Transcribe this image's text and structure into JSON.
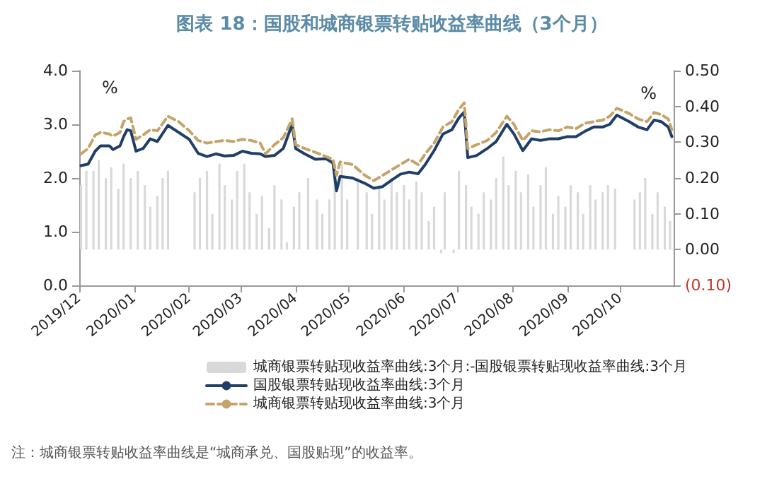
{
  "chart_data": {
    "type": "line",
    "title": "图表 18：国股和城商银票转贴收益率曲线（3个月）",
    "ylabel": "%",
    "y2label": "%",
    "annotations": [
      "注：城商银票转贴收益率曲线是“城商承兑、国股贴现”的收益率。"
    ],
    "xlim": [
      "2019-12-01",
      "2020-10-31"
    ],
    "xticks": [
      {
        "value": "2019-12-01",
        "label": "2019/12"
      },
      {
        "value": "2020-01-01",
        "label": "2020/01"
      },
      {
        "value": "2020-02-01",
        "label": "2020/02"
      },
      {
        "value": "2020-03-01",
        "label": "2020/03"
      },
      {
        "value": "2020-04-01",
        "label": "2020/04"
      },
      {
        "value": "2020-05-01",
        "label": "2020/05"
      },
      {
        "value": "2020-06-01",
        "label": "2020/06"
      },
      {
        "value": "2020-07-01",
        "label": "2020/07"
      },
      {
        "value": "2020-08-01",
        "label": "2020/08"
      },
      {
        "value": "2020-09-01",
        "label": "2020/09"
      },
      {
        "value": "2020-10-01",
        "label": "2020/10"
      }
    ],
    "ylim": [
      0,
      4
    ],
    "yticks": [
      {
        "value": 0,
        "label": "0.0"
      },
      {
        "value": 1,
        "label": "1.0"
      },
      {
        "value": 2,
        "label": "2.0"
      },
      {
        "value": 3,
        "label": "3.0"
      },
      {
        "value": 4,
        "label": "4.0"
      }
    ],
    "y2lim": [
      -0.1,
      0.5
    ],
    "y2ticks": [
      {
        "value": -0.1,
        "label": "(0.10)"
      },
      {
        "value": 0,
        "label": "0.00"
      },
      {
        "value": 0.1,
        "label": "0.10"
      },
      {
        "value": 0.2,
        "label": "0.20"
      },
      {
        "value": 0.3,
        "label": "0.30"
      },
      {
        "value": 0.4,
        "label": "0.40"
      },
      {
        "value": 0.5,
        "label": "0.50"
      }
    ],
    "grid": false,
    "legend": "bottom",
    "marker": "none",
    "series": [
      {
        "name": "城商银票转贴现收益率曲线:3个月:-国股银票转贴现收益率曲线:3个月",
        "type": "bar",
        "axis": "y2",
        "color": "#d9d9d9",
        "x": [
          "2019-12-02",
          "2019-12-05",
          "2019-12-09",
          "2019-12-12",
          "2019-12-16",
          "2019-12-19",
          "2019-12-23",
          "2019-12-26",
          "2019-12-30",
          "2020-01-03",
          "2020-01-07",
          "2020-01-10",
          "2020-01-14",
          "2020-01-17",
          "2020-01-20",
          "2020-02-04",
          "2020-02-07",
          "2020-02-11",
          "2020-02-14",
          "2020-02-18",
          "2020-02-21",
          "2020-02-25",
          "2020-02-28",
          "2020-03-03",
          "2020-03-06",
          "2020-03-10",
          "2020-03-13",
          "2020-03-17",
          "2020-03-20",
          "2020-03-24",
          "2020-03-27",
          "2020-03-31",
          "2020-04-03",
          "2020-04-08",
          "2020-04-13",
          "2020-04-16",
          "2020-04-20",
          "2020-04-23",
          "2020-04-27",
          "2020-04-30",
          "2020-05-06",
          "2020-05-11",
          "2020-05-14",
          "2020-05-18",
          "2020-05-21",
          "2020-05-25",
          "2020-05-28",
          "2020-06-01",
          "2020-06-04",
          "2020-06-08",
          "2020-06-11",
          "2020-06-15",
          "2020-06-18",
          "2020-06-22",
          "2020-06-24",
          "2020-06-29",
          "2020-07-02",
          "2020-07-06",
          "2020-07-09",
          "2020-07-13",
          "2020-07-16",
          "2020-07-20",
          "2020-07-23",
          "2020-07-27",
          "2020-07-30",
          "2020-08-03",
          "2020-08-06",
          "2020-08-10",
          "2020-08-13",
          "2020-08-17",
          "2020-08-20",
          "2020-08-24",
          "2020-08-27",
          "2020-08-31",
          "2020-09-03",
          "2020-09-07",
          "2020-09-10",
          "2020-09-14",
          "2020-09-17",
          "2020-09-21",
          "2020-09-24",
          "2020-09-28",
          "2020-10-09",
          "2020-10-12",
          "2020-10-15",
          "2020-10-19",
          "2020-10-22",
          "2020-10-26",
          "2020-10-29"
        ],
        "values": [
          0.18,
          0.22,
          0.22,
          0.25,
          0.2,
          0.23,
          0.17,
          0.24,
          0.2,
          0.22,
          0.18,
          0.12,
          0.15,
          0.2,
          0.22,
          0.16,
          0.2,
          0.22,
          0.1,
          0.24,
          0.18,
          0.14,
          0.22,
          0.24,
          0.16,
          0.1,
          0.15,
          0.06,
          0.18,
          0.14,
          0.02,
          0.12,
          0.16,
          0.2,
          0.14,
          0.1,
          0.14,
          0.24,
          0.24,
          0.14,
          0.2,
          0.16,
          0.1,
          0.18,
          0.14,
          0.2,
          0.16,
          0.18,
          0.14,
          0.19,
          0.16,
          0.08,
          0.12,
          -0.01,
          0.16,
          -0.01,
          0.22,
          0.18,
          0.12,
          0.1,
          0.16,
          0.14,
          0.2,
          0.26,
          0.18,
          0.22,
          0.16,
          0.21,
          0.12,
          0.18,
          0.23,
          0.1,
          0.15,
          0.12,
          0.18,
          0.16,
          0.1,
          0.18,
          0.14,
          0.16,
          0.18,
          0.17,
          0.14,
          0.16,
          0.2,
          0.1,
          0.16,
          0.12,
          0.08
        ]
      },
      {
        "name": "国股银票转贴现收益率曲线:3个月",
        "color": "#1f3f68",
        "line_style": "solid",
        "x": [
          "2019-12-02",
          "2019-12-06",
          "2019-12-10",
          "2019-12-13",
          "2019-12-18",
          "2019-12-20",
          "2019-12-24",
          "2019-12-26",
          "2019-12-28",
          "2019-12-30",
          "2020-01-02",
          "2020-01-06",
          "2020-01-10",
          "2020-01-14",
          "2020-01-20",
          "2020-01-26",
          "2020-02-01",
          "2020-02-06",
          "2020-02-11",
          "2020-02-16",
          "2020-02-21",
          "2020-02-26",
          "2020-03-02",
          "2020-03-07",
          "2020-03-12",
          "2020-03-15",
          "2020-03-20",
          "2020-03-25",
          "2020-03-30",
          "2020-04-01",
          "2020-04-06",
          "2020-04-12",
          "2020-04-18",
          "2020-04-22",
          "2020-04-24",
          "2020-04-26",
          "2020-05-03",
          "2020-05-10",
          "2020-05-15",
          "2020-05-20",
          "2020-05-25",
          "2020-05-30",
          "2020-06-04",
          "2020-06-09",
          "2020-06-13",
          "2020-06-18",
          "2020-06-23",
          "2020-06-28",
          "2020-07-02",
          "2020-07-05",
          "2020-07-07",
          "2020-07-12",
          "2020-07-18",
          "2020-07-23",
          "2020-07-29",
          "2020-08-02",
          "2020-08-07",
          "2020-08-12",
          "2020-08-17",
          "2020-08-22",
          "2020-08-27",
          "2020-09-01",
          "2020-09-06",
          "2020-09-11",
          "2020-09-16",
          "2020-09-21",
          "2020-09-25",
          "2020-09-29",
          "2020-10-06",
          "2020-10-11",
          "2020-10-16",
          "2020-10-20",
          "2020-10-24",
          "2020-10-28",
          "2020-10-30"
        ],
        "values": [
          2.23,
          2.26,
          2.5,
          2.6,
          2.6,
          2.53,
          2.6,
          2.77,
          2.9,
          2.88,
          2.5,
          2.55,
          2.73,
          2.68,
          2.98,
          2.85,
          2.72,
          2.46,
          2.4,
          2.45,
          2.41,
          2.42,
          2.5,
          2.46,
          2.45,
          2.4,
          2.42,
          2.55,
          3.0,
          2.55,
          2.45,
          2.35,
          2.36,
          2.28,
          1.76,
          2.03,
          2.0,
          1.9,
          1.81,
          1.84,
          1.96,
          2.07,
          2.11,
          2.08,
          2.25,
          2.51,
          2.82,
          2.9,
          3.12,
          3.23,
          2.38,
          2.42,
          2.55,
          2.68,
          3.0,
          2.82,
          2.51,
          2.73,
          2.7,
          2.73,
          2.73,
          2.77,
          2.77,
          2.87,
          2.95,
          2.95,
          3.0,
          3.17,
          3.05,
          2.95,
          2.9,
          3.08,
          3.05,
          2.95,
          2.77
        ]
      },
      {
        "name": "城商银票转贴现收益率曲线:3个月",
        "color": "#c4a46b",
        "line_style": "dashed",
        "x": [
          "2019-12-02",
          "2019-12-06",
          "2019-12-10",
          "2019-12-13",
          "2019-12-18",
          "2019-12-20",
          "2019-12-24",
          "2019-12-26",
          "2019-12-28",
          "2019-12-30",
          "2020-01-02",
          "2020-01-06",
          "2020-01-10",
          "2020-01-14",
          "2020-01-20",
          "2020-01-26",
          "2020-02-01",
          "2020-02-06",
          "2020-02-11",
          "2020-02-16",
          "2020-02-21",
          "2020-02-26",
          "2020-03-02",
          "2020-03-07",
          "2020-03-12",
          "2020-03-15",
          "2020-03-20",
          "2020-03-25",
          "2020-03-30",
          "2020-04-01",
          "2020-04-06",
          "2020-04-12",
          "2020-04-18",
          "2020-04-22",
          "2020-04-24",
          "2020-04-26",
          "2020-05-03",
          "2020-05-10",
          "2020-05-15",
          "2020-05-20",
          "2020-05-25",
          "2020-05-30",
          "2020-06-04",
          "2020-06-09",
          "2020-06-13",
          "2020-06-18",
          "2020-06-23",
          "2020-06-28",
          "2020-07-02",
          "2020-07-05",
          "2020-07-07",
          "2020-07-12",
          "2020-07-18",
          "2020-07-23",
          "2020-07-29",
          "2020-08-02",
          "2020-08-07",
          "2020-08-12",
          "2020-08-17",
          "2020-08-22",
          "2020-08-27",
          "2020-09-01",
          "2020-09-06",
          "2020-09-11",
          "2020-09-16",
          "2020-09-21",
          "2020-09-25",
          "2020-09-29",
          "2020-10-06",
          "2020-10-11",
          "2020-10-16",
          "2020-10-20",
          "2020-10-24",
          "2020-10-28",
          "2020-10-30"
        ],
        "values": [
          2.45,
          2.55,
          2.8,
          2.85,
          2.82,
          2.78,
          2.85,
          3.05,
          3.1,
          3.12,
          2.72,
          2.8,
          2.9,
          2.88,
          3.15,
          3.05,
          2.88,
          2.7,
          2.65,
          2.68,
          2.7,
          2.68,
          2.72,
          2.7,
          2.65,
          2.45,
          2.62,
          2.75,
          3.1,
          2.62,
          2.55,
          2.48,
          2.4,
          2.35,
          2.05,
          2.3,
          2.25,
          2.05,
          1.95,
          2.05,
          2.15,
          2.25,
          2.35,
          2.25,
          2.45,
          2.65,
          2.95,
          3.05,
          3.28,
          3.4,
          2.55,
          2.62,
          2.7,
          2.85,
          3.15,
          3.0,
          2.7,
          2.88,
          2.86,
          2.9,
          2.88,
          2.95,
          2.92,
          3.02,
          3.05,
          3.08,
          3.15,
          3.3,
          3.2,
          3.1,
          3.05,
          3.22,
          3.18,
          3.1,
          2.9
        ]
      }
    ]
  }
}
